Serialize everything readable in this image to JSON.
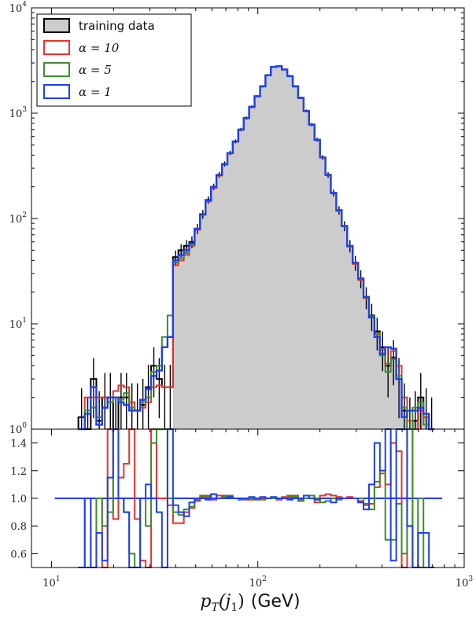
{
  "chart_data": [
    {
      "type": "step-histogram",
      "panel": "distribution",
      "yscale": "log",
      "xscale": "log",
      "xlim": [
        8,
        1000
      ],
      "ylim": [
        1,
        10000
      ],
      "y_ticks": [
        {
          "value": 1,
          "base": "10",
          "exp": "0"
        },
        {
          "value": 10,
          "base": "10",
          "exp": "1"
        },
        {
          "value": 100,
          "base": "10",
          "exp": "2"
        },
        {
          "value": 1000,
          "base": "10",
          "exp": "3"
        },
        {
          "value": 10000,
          "base": "10",
          "exp": "4"
        }
      ],
      "legend": [
        {
          "label": "training data",
          "color": "#000000",
          "fill": "#cccccc",
          "math": false
        },
        {
          "label": "α = 10",
          "color": "#e8332a",
          "math": true
        },
        {
          "label": "α = 5",
          "color": "#3a8f2e",
          "math": true
        },
        {
          "label": "α = 1",
          "color": "#1f3ff0",
          "math": true
        }
      ],
      "legend_position": "top-left",
      "bins": [
        13.5,
        14.5,
        15.5,
        16.5,
        17.6,
        18.7,
        19.9,
        21.1,
        22.4,
        23.8,
        25.3,
        26.9,
        28.6,
        30.4,
        32.3,
        34.3,
        36.5,
        38.8,
        41.2,
        43.8,
        46.5,
        49.4,
        52.5,
        55.8,
        59.3,
        63.0,
        67.0,
        71.2,
        75.6,
        80.4,
        85.4,
        90.7,
        96.4,
        102.5,
        108.9,
        115.7,
        123.0,
        130.7,
        138.9,
        147.6,
        156.8,
        166.7,
        177.1,
        188.2,
        200.0,
        212.5,
        225.8,
        240.0,
        255.0,
        271.0,
        288.0,
        306.0,
        325.2,
        345.6,
        367.3,
        390.3,
        414.7,
        440.7,
        468.4,
        497.7,
        528.9,
        562.1,
        597.3,
        634.8,
        674.5,
        716.8
      ],
      "series": [
        {
          "name": "training data",
          "values": [
            1.3,
            1.0,
            3.0,
            1.2,
            2.0,
            2.0,
            1.0,
            2.0,
            2.0,
            1.5,
            1.5,
            1.7,
            2.5,
            4.0,
            3.0,
            2.5,
            2.5,
            43,
            50,
            55,
            60,
            80,
            110,
            150,
            200,
            260,
            330,
            420,
            540,
            700,
            900,
            1150,
            1450,
            1800,
            2300,
            2750,
            2800,
            2600,
            2250,
            1800,
            1400,
            1050,
            780,
            560,
            380,
            260,
            175,
            120,
            85,
            55,
            38,
            27,
            18,
            12,
            8.5,
            6.0,
            4.0,
            4.8,
            3.0,
            1.5,
            1.0,
            1.2,
            2.0,
            1.3,
            1.0
          ]
        },
        {
          "name": "α = 10",
          "values": [
            1.0,
            2.0,
            2.0,
            2.0,
            2.0,
            1.8,
            2.3,
            2.6,
            2.5,
            1.8,
            1.5,
            1.6,
            1.8,
            2.5,
            2.6,
            2.5,
            2.5,
            36,
            40,
            45,
            55,
            78,
            108,
            145,
            195,
            255,
            325,
            415,
            535,
            695,
            895,
            1140,
            1440,
            1790,
            2280,
            2740,
            2790,
            2590,
            2240,
            1790,
            1390,
            1045,
            775,
            555,
            378,
            258,
            173,
            118,
            84,
            54,
            37,
            26,
            17.5,
            11.5,
            8.0,
            5.7,
            4.2,
            5.5,
            4.0,
            2.0,
            1.2,
            1.0,
            1.5,
            1.3,
            1.0
          ]
        },
        {
          "name": "α = 5",
          "values": [
            1.0,
            1.5,
            1.6,
            1.3,
            1.6,
            1.8,
            2.0,
            1.9,
            2.2,
            1.6,
            1.5,
            1.8,
            2.0,
            3.5,
            4.0,
            7.5,
            12.0,
            38,
            42,
            47,
            56,
            79,
            109,
            147,
            197,
            257,
            327,
            417,
            537,
            697,
            897,
            1145,
            1445,
            1795,
            2285,
            2745,
            2795,
            2595,
            2245,
            1795,
            1395,
            1048,
            778,
            558,
            379,
            259,
            174,
            119,
            84.5,
            54.5,
            37.5,
            26.5,
            17.8,
            11.8,
            8.2,
            5.0,
            3.5,
            4.6,
            3.2,
            1.6,
            1.0,
            1.6,
            1.8,
            1.1,
            1.0
          ]
        },
        {
          "name": "α = 1",
          "values": [
            1.0,
            1.4,
            2.5,
            1.1,
            1.6,
            2.0,
            2.0,
            1.8,
            1.7,
            1.5,
            1.5,
            1.9,
            2.4,
            3.2,
            3.6,
            6.0,
            7.5,
            40,
            45,
            50,
            58,
            80,
            110,
            148,
            198,
            258,
            328,
            418,
            538,
            698,
            898,
            1148,
            1448,
            1798,
            2290,
            2748,
            2798,
            2598,
            2248,
            1798,
            1398,
            1050,
            780,
            560,
            380,
            260,
            175,
            120,
            85,
            55,
            38,
            27,
            18,
            11.5,
            7.5,
            5.2,
            6.0,
            5.8,
            3.0,
            1.3,
            1.5,
            1.5,
            1.6,
            1.4,
            1.0
          ]
        }
      ]
    },
    {
      "type": "step-line",
      "panel": "ratio",
      "xscale": "log",
      "xlim": [
        8,
        1000
      ],
      "ylim": [
        0.5,
        1.5
      ],
      "y_ticks": [
        "0.6",
        "0.8",
        "1.0",
        "1.2",
        "1.4"
      ],
      "x_ticks": [
        {
          "value": 10,
          "base": "10",
          "exp": "1"
        },
        {
          "value": 100,
          "base": "10",
          "exp": "2"
        },
        {
          "value": 1000,
          "base": "10",
          "exp": "3"
        }
      ],
      "reference_line": 1.0,
      "xlabel_math": "p",
      "xlabel_sub": "T",
      "xlabel_arg": "(j",
      "xlabel_argsub": "1",
      "xlabel_close": ")",
      "xlabel_unit": "(GeV)",
      "series": [
        {
          "name": "α = 10",
          "color": "#e8332a",
          "values": [
            0.5,
            1.0,
            0.5,
            1.0,
            0.5,
            1.5,
            0.85,
            1.15,
            1.25,
            1.5,
            0.85,
            0.55,
            0.5,
            1.5,
            1.0,
            1.0,
            0.95,
            0.82,
            0.82,
            0.9,
            0.93,
            0.98,
            1.01,
            1.02,
            0.99,
            1.02,
            1.02,
            1.01,
            1.0,
            0.99,
            0.99,
            0.99,
            0.99,
            1.0,
            1.0,
            1.0,
            0.99,
            1.01,
            1.01,
            1.02,
            0.99,
            1.0,
            1.02,
            0.97,
            1.02,
            1.03,
            1.02,
            1.01,
            1.0,
            1.01,
            1.0,
            0.98,
            0.96,
            0.96,
            1.08,
            1.18,
            1.1,
            1.4,
            1.34,
            0.5,
            1.5,
            0.5,
            0.5,
            0.5,
            0.5
          ]
        },
        {
          "name": "α = 5",
          "color": "#3a8f2e",
          "values": [
            0.5,
            0.5,
            0.5,
            1.0,
            0.8,
            0.9,
            1.5,
            1.0,
            0.9,
            0.6,
            0.5,
            1.0,
            0.8,
            1.4,
            1.5,
            1.5,
            1.0,
            0.9,
            0.88,
            0.92,
            0.94,
            0.99,
            1.02,
            1.01,
            1.03,
            1.0,
            1.01,
            1.02,
            1.0,
            0.99,
            1.0,
            1.0,
            0.99,
            0.99,
            1.0,
            1.0,
            1.0,
            1.0,
            1.02,
            1.01,
            0.98,
            1.0,
            1.02,
            1.0,
            0.97,
            0.98,
            1.0,
            0.99,
            1.0,
            1.0,
            1.0,
            1.0,
            0.95,
            0.92,
            1.12,
            1.2,
            0.7,
            0.7,
            0.96,
            0.6,
            1.5,
            0.5,
            1.0,
            0.5,
            0.5
          ]
        },
        {
          "name": "α = 1",
          "color": "#1f3ff0",
          "values": [
            0.5,
            1.0,
            0.5,
            0.75,
            0.55,
            1.15,
            1.5,
            1.0,
            0.9,
            0.5,
            0.5,
            1.0,
            1.1,
            1.0,
            0.9,
            0.5,
            1.5,
            0.95,
            0.9,
            0.87,
            0.97,
            1.0,
            1.0,
            0.99,
            1.03,
            1.0,
            1.0,
            1.01,
            1.0,
            1.0,
            1.0,
            1.01,
            1.0,
            1.01,
            1.0,
            1.01,
            1.0,
            1.0,
            0.99,
            1.0,
            1.0,
            1.02,
            1.0,
            0.99,
            1.0,
            1.0,
            0.97,
            1.0,
            1.0,
            1.0,
            1.0,
            0.97,
            0.92,
            1.1,
            1.4,
            1.2,
            1.5,
            0.55,
            1.5,
            1.5,
            0.8,
            0.5,
            0.75,
            0.75,
            0.5
          ]
        }
      ]
    }
  ]
}
